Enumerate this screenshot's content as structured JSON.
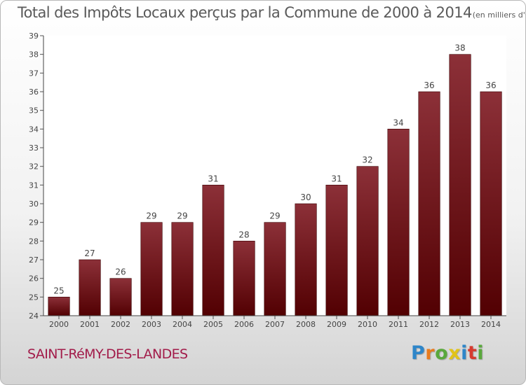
{
  "chart_data": {
    "type": "bar",
    "title": "Total des Impôts Locaux perçus par la Commune de 2000 à 2014",
    "unit_label": "(en milliers d'€)",
    "categories": [
      "2000",
      "2001",
      "2002",
      "2003",
      "2004",
      "2005",
      "2006",
      "2007",
      "2008",
      "2009",
      "2010",
      "2011",
      "2012",
      "2013",
      "2014"
    ],
    "values": [
      25,
      27,
      26,
      29,
      29,
      31,
      28,
      29,
      30,
      31,
      32,
      34,
      36,
      38,
      36
    ],
    "ylim": [
      24,
      39
    ],
    "yticks": [
      24,
      25,
      26,
      27,
      28,
      29,
      30,
      31,
      32,
      33,
      34,
      35,
      36,
      37,
      38,
      39
    ],
    "grid": false,
    "legend": "none",
    "colors": {
      "bar_top": "#8c3038",
      "bar_bottom": "#520002"
    }
  },
  "footer": {
    "commune": "SAINT-RéMY-DES-LANDES",
    "logo_text": "Proxiti",
    "logo_colors": [
      "#2e86c9",
      "#e87b1e",
      "#5aa83c",
      "#e1c319",
      "#2e86c9",
      "#d63b2f",
      "#5aa83c"
    ]
  }
}
